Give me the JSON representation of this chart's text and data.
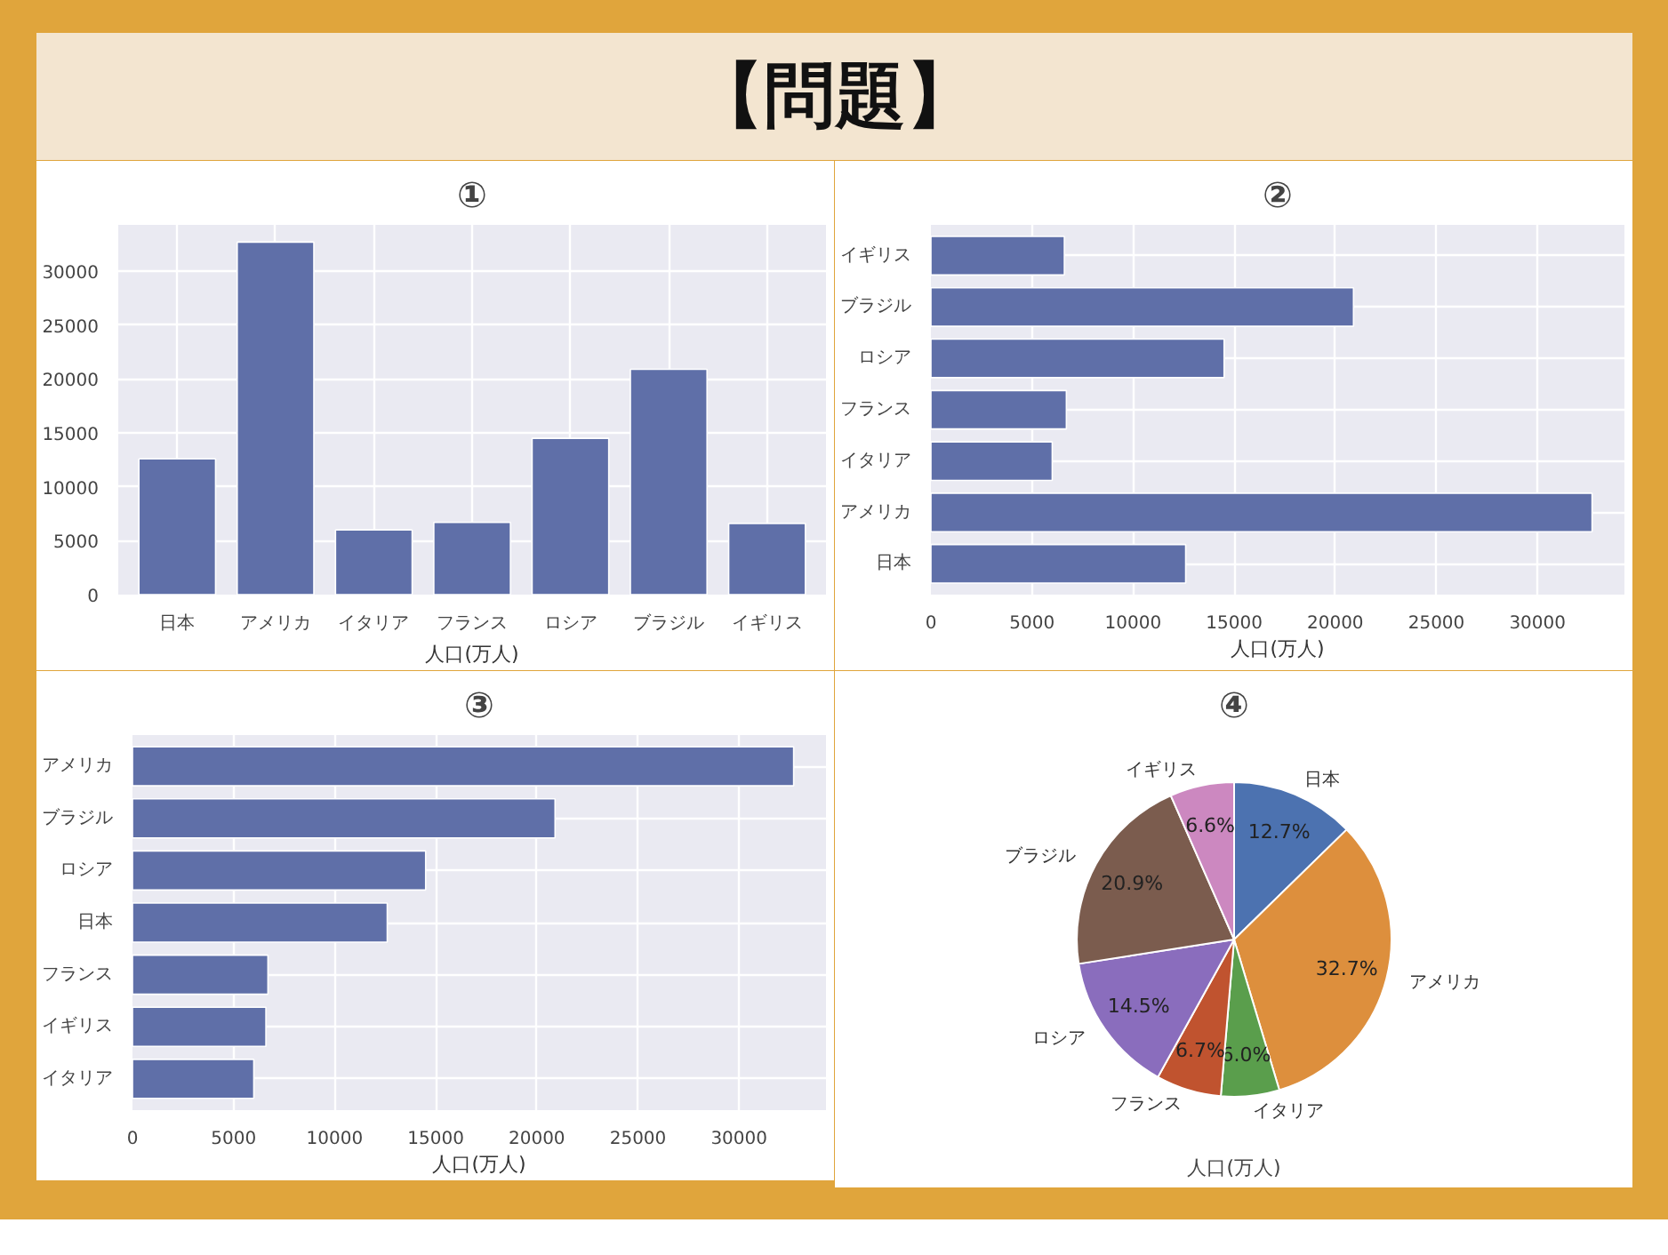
{
  "chart_data": [
    {
      "type": "other",
      "title": "【問題】"
    },
    {
      "type": "bar",
      "title": "①",
      "xlabel": "人口(万人)",
      "categories": [
        "日本",
        "アメリカ",
        "イタリア",
        "フランス",
        "ロシア",
        "ブラジル",
        "イギリス"
      ],
      "values": [
        12600,
        32700,
        6000,
        6700,
        14500,
        20900,
        6600
      ],
      "color": "#5f6fa8",
      "ylim": [
        0,
        34300
      ],
      "yticks": [
        0,
        5000,
        10000,
        15000,
        20000,
        25000,
        30000
      ],
      "grid": true
    },
    {
      "type": "bar",
      "orientation": "horizontal",
      "title": "②",
      "xlabel": "人口(万人)",
      "categories": [
        "イギリス",
        "ブラジル",
        "ロシア",
        "フランス",
        "イタリア",
        "アメリカ",
        "日本"
      ],
      "values": [
        6600,
        20900,
        14500,
        6700,
        6000,
        32700,
        12600
      ],
      "color": "#5f6fa8",
      "xlim": [
        0,
        34300
      ],
      "xticks": [
        0,
        5000,
        10000,
        15000,
        20000,
        25000,
        30000
      ],
      "grid": true
    },
    {
      "type": "bar",
      "orientation": "horizontal",
      "title": "③",
      "xlabel": "人口(万人)",
      "categories": [
        "アメリカ",
        "ブラジル",
        "ロシア",
        "日本",
        "フランス",
        "イギリス",
        "イタリア"
      ],
      "values": [
        32700,
        20900,
        14500,
        12600,
        6700,
        6600,
        6000
      ],
      "color": "#5f6fa8",
      "xlim": [
        0,
        34300
      ],
      "xticks": [
        0,
        5000,
        10000,
        15000,
        20000,
        25000,
        30000
      ],
      "grid": true
    },
    {
      "type": "pie",
      "title": "④",
      "xlabel": "人口(万人)",
      "categories": [
        "日本",
        "アメリカ",
        "イタリア",
        "フランス",
        "ロシア",
        "ブラジル",
        "イギリス"
      ],
      "values": [
        12.7,
        32.7,
        6.0,
        6.7,
        14.5,
        20.9,
        6.6
      ],
      "value_labels": [
        "12.7%",
        "32.7%",
        "6.0%",
        "6.7%",
        "14.5%",
        "20.9%",
        "6.6%"
      ],
      "colors": [
        "#4c72b0",
        "#dd8f3d",
        "#5a9e4c",
        "#c0532f",
        "#8a6dbd",
        "#7b5c4e",
        "#cc88c0"
      ]
    }
  ]
}
